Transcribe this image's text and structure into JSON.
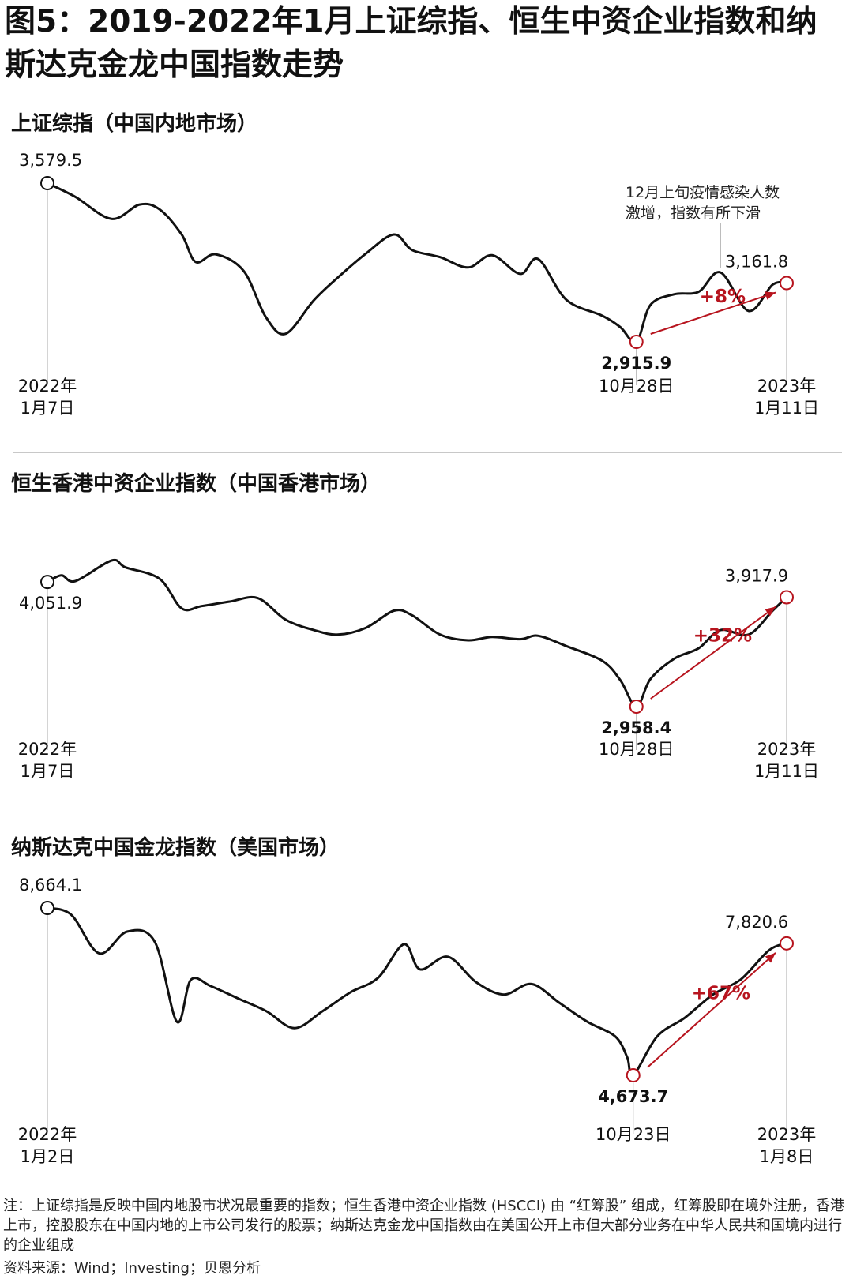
{
  "title": "图5：2019-2022年1月上证综指、恒生中资企业指数和纳斯达克金龙中国指数走势",
  "chart_data": [
    {
      "type": "line",
      "title": "上证综指（中国内地市场）",
      "x": [
        "2022-01-07",
        "2022-01-21",
        "2022-02-08",
        "2022-02-22",
        "2022-03-04",
        "2022-03-15",
        "2022-03-22",
        "2022-04-01",
        "2022-04-15",
        "2022-04-26",
        "2022-05-06",
        "2022-05-20",
        "2022-06-01",
        "2022-06-15",
        "2022-06-29",
        "2022-07-08",
        "2022-07-22",
        "2022-08-05",
        "2022-08-17",
        "2022-08-31",
        "2022-09-09",
        "2022-09-23",
        "2022-10-11",
        "2022-10-20",
        "2022-10-28",
        "2022-11-04",
        "2022-11-16",
        "2022-11-28",
        "2022-12-09",
        "2022-12-23",
        "2023-01-04",
        "2023-01-11"
      ],
      "values": [
        3579.5,
        3522,
        3430,
        3490,
        3470,
        3365,
        3250,
        3282,
        3212,
        3020,
        2950,
        3090,
        3185,
        3285,
        3365,
        3300,
        3270,
        3227,
        3278,
        3200,
        3262,
        3092,
        3025,
        2977,
        2915.9,
        3070,
        3115,
        3125,
        3206,
        3045,
        3155,
        3161.8
      ],
      "labels": {
        "start_value": "3,579.5",
        "low_value": "2,915.9",
        "end_value": "3,161.8",
        "change": "+8%",
        "annotation_line1": "12月上旬疫情感染人数",
        "annotation_line2": "激增，指数有所下滑",
        "start_date_l1": "2022年",
        "start_date_l2": "1月7日",
        "low_date": "10月28日",
        "end_date_l1": "2023年",
        "end_date_l2": "1月11日"
      }
    },
    {
      "type": "line",
      "title": "恒生香港中资企业指数（中国香港市场）",
      "x": [
        "2022-01-07",
        "2022-01-14",
        "2022-01-21",
        "2022-02-08",
        "2022-02-15",
        "2022-03-04",
        "2022-03-15",
        "2022-03-25",
        "2022-04-08",
        "2022-04-22",
        "2022-05-06",
        "2022-05-20",
        "2022-06-01",
        "2022-06-15",
        "2022-06-29",
        "2022-07-08",
        "2022-07-22",
        "2022-08-05",
        "2022-08-17",
        "2022-08-31",
        "2022-09-09",
        "2022-09-23",
        "2022-10-11",
        "2022-10-20",
        "2022-10-28",
        "2022-11-04",
        "2022-11-16",
        "2022-11-28",
        "2022-12-09",
        "2022-12-23",
        "2023-01-04",
        "2023-01-11"
      ],
      "values": [
        4051.9,
        4110,
        4060,
        4240,
        4180,
        4080,
        3820,
        3840,
        3880,
        3910,
        3720,
        3630,
        3590,
        3650,
        3800,
        3760,
        3590,
        3540,
        3570,
        3550,
        3580,
        3490,
        3360,
        3190,
        2958.4,
        3200,
        3380,
        3470,
        3630,
        3590,
        3800,
        3917.9
      ],
      "labels": {
        "start_value": "4,051.9",
        "low_value": "2,958.4",
        "end_value": "3,917.9",
        "change": "+32%",
        "start_date_l1": "2022年",
        "start_date_l2": "1月7日",
        "low_date": "10月28日",
        "end_date_l1": "2023年",
        "end_date_l2": "1月11日"
      }
    },
    {
      "type": "line",
      "title": "纳斯达克中国金龙指数（美国市场）",
      "x": [
        "2022-01-02",
        "2022-01-14",
        "2022-01-28",
        "2022-02-11",
        "2022-02-25",
        "2022-03-08",
        "2022-03-15",
        "2022-03-25",
        "2022-04-08",
        "2022-04-22",
        "2022-05-06",
        "2022-05-20",
        "2022-06-03",
        "2022-06-17",
        "2022-06-30",
        "2022-07-08",
        "2022-07-22",
        "2022-08-05",
        "2022-08-19",
        "2022-09-02",
        "2022-09-16",
        "2022-09-30",
        "2022-10-14",
        "2022-10-20",
        "2022-10-23",
        "2022-11-04",
        "2022-11-18",
        "2022-12-02",
        "2022-12-16",
        "2022-12-30",
        "2023-01-08"
      ],
      "values": [
        8664.1,
        8500,
        7580,
        8100,
        7850,
        5950,
        6950,
        6800,
        6500,
        6200,
        5800,
        6200,
        6650,
        7000,
        7800,
        7200,
        7500,
        6900,
        6600,
        6850,
        6400,
        5950,
        5600,
        5100,
        4673.7,
        5600,
        6050,
        6600,
        6960,
        7650,
        7820.6
      ],
      "labels": {
        "start_value": "8,664.1",
        "low_value": "4,673.7",
        "end_value": "7,820.6",
        "change": "+67%",
        "start_date_l1": "2022年",
        "start_date_l2": "1月2日",
        "low_date": "10月23日",
        "end_date_l1": "2023年",
        "end_date_l2": "1月8日"
      }
    }
  ],
  "note": "注：上证综指是反映中国内地股市状况最重要的指数；恒生香港中资企业指数 (HSCCI) 由 “红筹股” 组成，红筹股即在境外注册，香港上市，控股股东在中国内地的上市公司发行的股票；纳斯达克金龙中国指数由在美国公开上市但大部分业务在中华人民共和国境内进行的企业组成",
  "source": "资料来源：Wind；Investing；贝恩分析",
  "colors": {
    "line": "#111111",
    "accent": "#b7141e",
    "guide": "#aaaaaa"
  }
}
